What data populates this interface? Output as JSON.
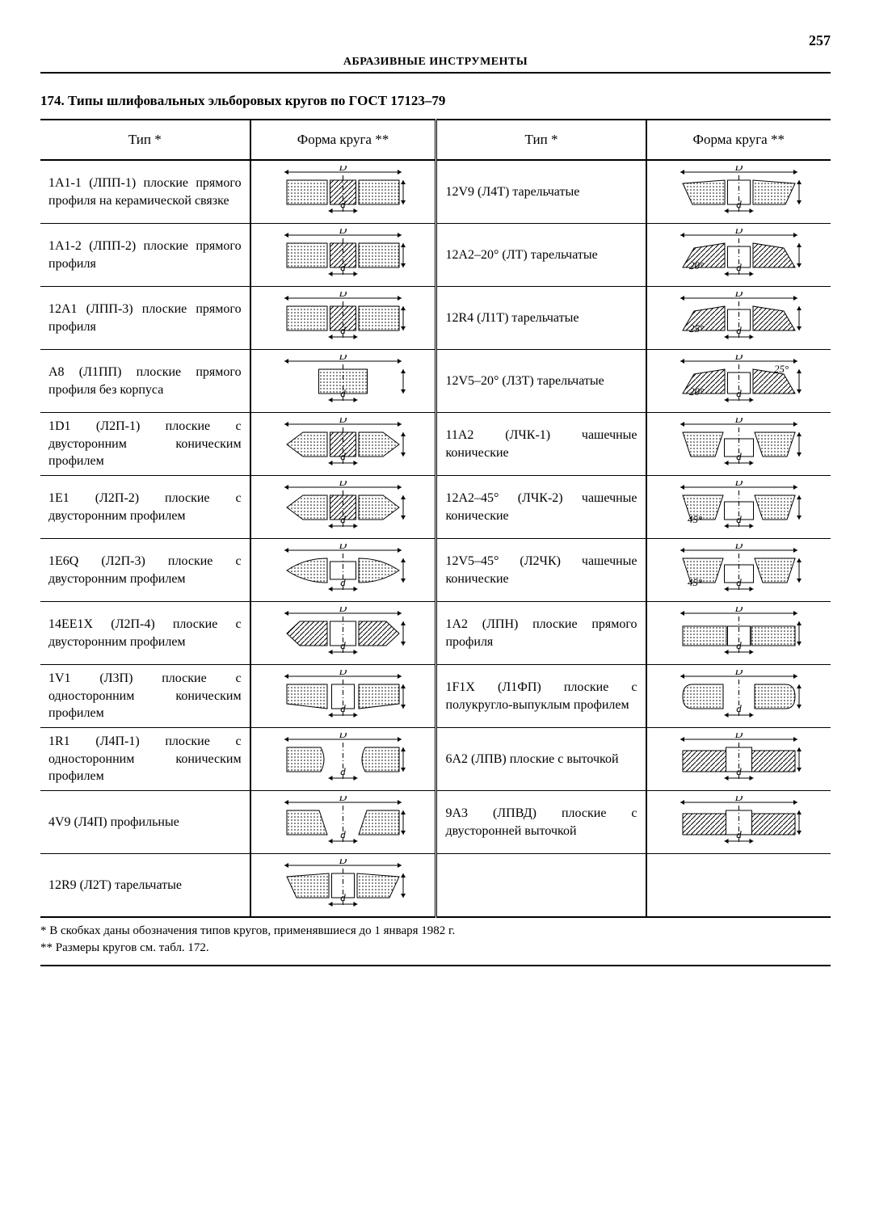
{
  "page_number": "257",
  "running_header": "АБРАЗИВНЫЕ ИНСТРУМЕНТЫ",
  "table_title": "174. Типы шлифовальных эльборовых кругов по ГОСТ 17123–79",
  "headers": {
    "type": "Тип *",
    "shape": "Форма круга **"
  },
  "left_rows": [
    {
      "desc": "1A1-1 (ЛПП-1) плоские прямого профиля на керамической связке",
      "D": "D",
      "d": "d",
      "shape": "flat"
    },
    {
      "desc": "1A1-2 (ЛПП-2) плоские прямого профиля",
      "D": "D",
      "d": "d",
      "shape": "flat-hatch"
    },
    {
      "desc": "12A1 (ЛПП-3) плоские прямого профиля",
      "D": "D",
      "d": "d",
      "shape": "flat-core"
    },
    {
      "desc": "A8 (Л1ПП) плоские прямого профиля без корпуса",
      "D": "D",
      "d": "d",
      "shape": "solid"
    },
    {
      "desc": "1D1 (Л2П-1) плоские с двусторонним коническим профилем",
      "D": "D",
      "d": "d",
      "shape": "biconic"
    },
    {
      "desc": "1E1 (Л2П-2) плоские с двусторонним профилем",
      "D": "D",
      "d": "d",
      "shape": "biconic2"
    },
    {
      "desc": "1E6Q (Л2П-3) плоские с двусторонним профилем",
      "D": "D",
      "d": "d",
      "shape": "biconvex"
    },
    {
      "desc": "14EE1X (Л2П-4) плоские с двусторонним профилем",
      "D": "D",
      "d": "d",
      "shape": "dblhatch"
    },
    {
      "desc": "1V1 (Л3П) плоские с односторонним коническим профилем",
      "D": "D",
      "d": "d",
      "shape": "oneside"
    },
    {
      "desc": "1R1 (Л4П-1) плоские с односторонним коническим профилем",
      "D": "D",
      "d": "d",
      "shape": "round1"
    },
    {
      "desc": "4V9 (Л4П) профильные",
      "D": "D",
      "d": "d",
      "shape": "profile"
    },
    {
      "desc": "12R9 (Л2Т) тарельчатые",
      "D": "D",
      "d": "d",
      "shape": "dish"
    }
  ],
  "right_rows": [
    {
      "desc": "12V9 (Л4Т) тарельчатые",
      "D": "D",
      "d": "d",
      "shape": "dish2"
    },
    {
      "desc": "12A2–20° (ЛТ) тарельчатые",
      "D": "D",
      "d": "d",
      "ang": "20°",
      "shape": "dish-ang"
    },
    {
      "desc": "12R4 (Л1Т) тарельчатые",
      "D": "D",
      "d": "d",
      "ang": "25°",
      "shape": "dish-ang2"
    },
    {
      "desc": "12V5–20° (Л3Т) тарельчатые",
      "D": "D",
      "d": "d",
      "ang": "20°",
      "ang2": "25°",
      "shape": "dish-v"
    },
    {
      "desc": "11A2 (ЛЧК-1) чашечные конические",
      "D": "D",
      "d": "d",
      "shape": "cup"
    },
    {
      "desc": "12A2–45° (ЛЧК-2) чашечные конические",
      "D": "D",
      "d": "d",
      "ang": "45°",
      "shape": "cup45"
    },
    {
      "desc": "12V5–45° (Л2ЧК) чашечные конические",
      "D": "D",
      "d": "d",
      "ang": "45°",
      "shape": "cup45b"
    },
    {
      "desc": "1A2 (ЛПН) плоские прямого профиля",
      "D": "D",
      "d": "d",
      "shape": "flat-low"
    },
    {
      "desc": "1F1X (Л1ФП) плоские с полукругло-выпуклым профилем",
      "D": "D",
      "d": "d",
      "shape": "rounded"
    },
    {
      "desc": "6A2 (ЛПВ) плоские с выточкой",
      "D": "D",
      "d": "d",
      "shape": "recess"
    },
    {
      "desc": "9A3 (ЛПВД) плоские с двусторонней выточкой",
      "D": "D",
      "d": "d",
      "shape": "recess2"
    }
  ],
  "footnotes": {
    "f1": "* В скобках даны обозначения типов кругов, применявшиеся до 1 января 1982 г.",
    "f2": "** Размеры кругов см. табл. 172."
  },
  "svg_style": {
    "stroke": "#000",
    "fill_hatch": "#888",
    "fill_dot": "#aaa",
    "width": 155,
    "height": 52
  }
}
